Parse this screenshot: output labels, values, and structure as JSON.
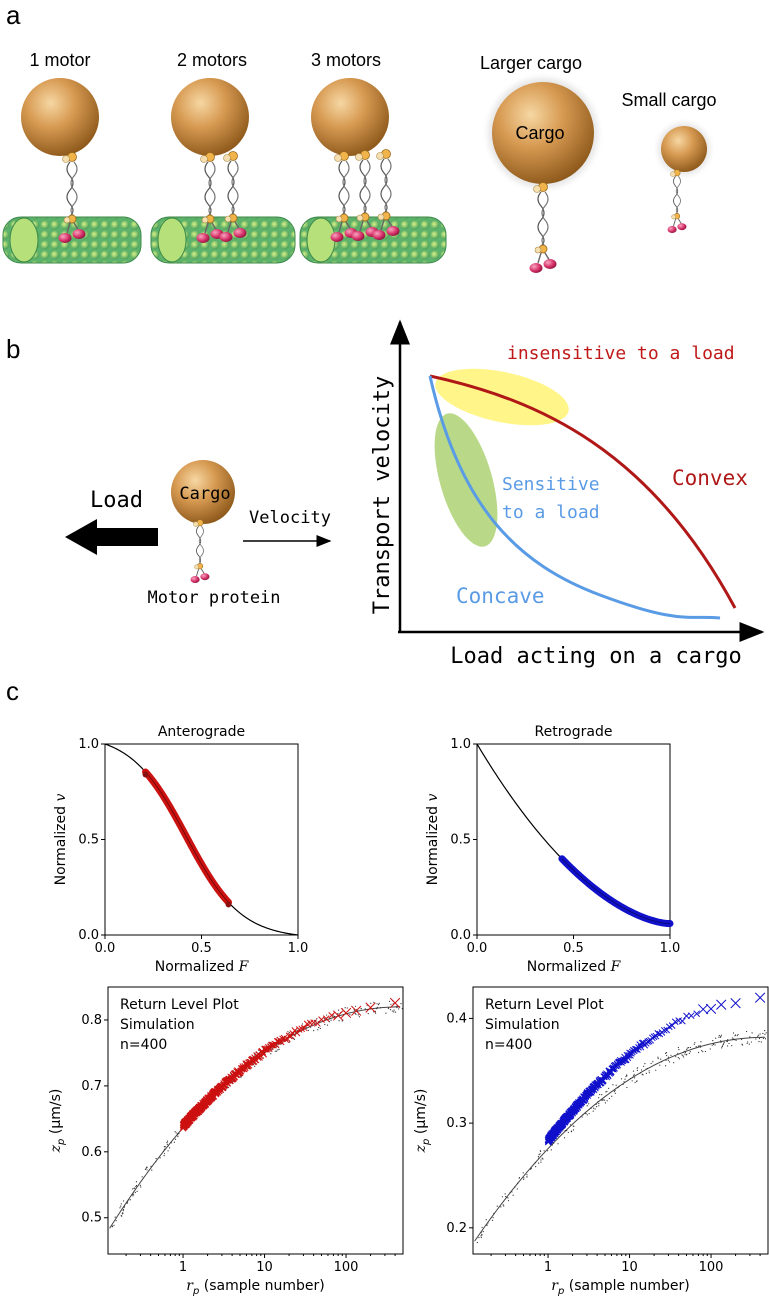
{
  "panels": {
    "a": "a",
    "b": "b",
    "c": "c"
  },
  "panel_a": {
    "labels": [
      "1 motor",
      "2 motors",
      "3 motors",
      "Larger cargo",
      "Small cargo"
    ],
    "cargo_text": "Cargo"
  },
  "panel_b": {
    "cargo_text": "Cargo",
    "load_text": "Load",
    "velocity_text": "Velocity",
    "motor_text": "Motor protein",
    "y_axis": "Transport velocity",
    "x_axis": "Load acting on a cargo",
    "insensitive": "insensitive to a load",
    "sensitive_1": "Sensitive",
    "sensitive_2": "to a load",
    "convex": "Convex",
    "concave": "Concave",
    "colors": {
      "convex": "#b01818",
      "concave": "#5a9be6",
      "yellow": "#fff36a",
      "green": "#a8d06a"
    }
  },
  "chart_data": [
    {
      "id": "anterograde",
      "type": "line",
      "title": "Anterograde",
      "xlabel": "Normalized F",
      "ylabel": "Normalized v",
      "xlim": [
        0,
        1
      ],
      "ylim": [
        0,
        1
      ],
      "xticks": [
        "0.0",
        "0.5",
        "1.0"
      ],
      "yticks": [
        "0.0",
        "0.5",
        "1.0"
      ],
      "curve": "sigmoid",
      "highlight_range": [
        0.21,
        0.64
      ],
      "endpoints": [
        [
          0.21,
          0.84
        ],
        [
          0.64,
          0.16
        ]
      ],
      "color": "#cc1111"
    },
    {
      "id": "retrograde",
      "type": "line",
      "title": "Retrograde",
      "xlabel": "Normalized F",
      "ylabel": "Normalized v",
      "xlim": [
        0,
        1
      ],
      "ylim": [
        0,
        1
      ],
      "xticks": [
        "0.0",
        "0.5",
        "1.0"
      ],
      "yticks": [
        "0.0",
        "0.5",
        "1.0"
      ],
      "curve": "concave",
      "highlight_range": [
        0.44,
        1.0
      ],
      "color": "#1111cc"
    },
    {
      "id": "return-level-red",
      "type": "scatter",
      "legend": [
        "Return Level Plot",
        "Simulation",
        "n=400"
      ],
      "xscale": "log",
      "xlim": [
        0.12,
        500
      ],
      "ylim": [
        0.445,
        0.85
      ],
      "xlabel": "r_p (sample number)",
      "ylabel": "z_p (µm/s)",
      "xticks": [
        "1",
        "10",
        "100"
      ],
      "yticks": [
        "0.5",
        "0.6",
        "0.7",
        "0.8"
      ],
      "fit_range": [
        0.48,
        0.82
      ],
      "data_range": [
        0.51,
        0.825
      ],
      "color": "#cc1111"
    },
    {
      "id": "return-level-blue",
      "type": "scatter",
      "legend": [
        "Return Level Plot",
        "Simulation",
        "n=400"
      ],
      "xscale": "log",
      "xlim": [
        0.12,
        500
      ],
      "ylim": [
        0.175,
        0.43
      ],
      "xlabel": "r_p (sample number)",
      "ylabel": "z_p (µm/s)",
      "xticks": [
        "1",
        "10",
        "100"
      ],
      "yticks": [
        "0.2",
        "0.3",
        "0.4"
      ],
      "fit_range": [
        0.185,
        0.382
      ],
      "data_range": [
        0.19,
        0.418
      ],
      "color": "#1111cc"
    }
  ]
}
